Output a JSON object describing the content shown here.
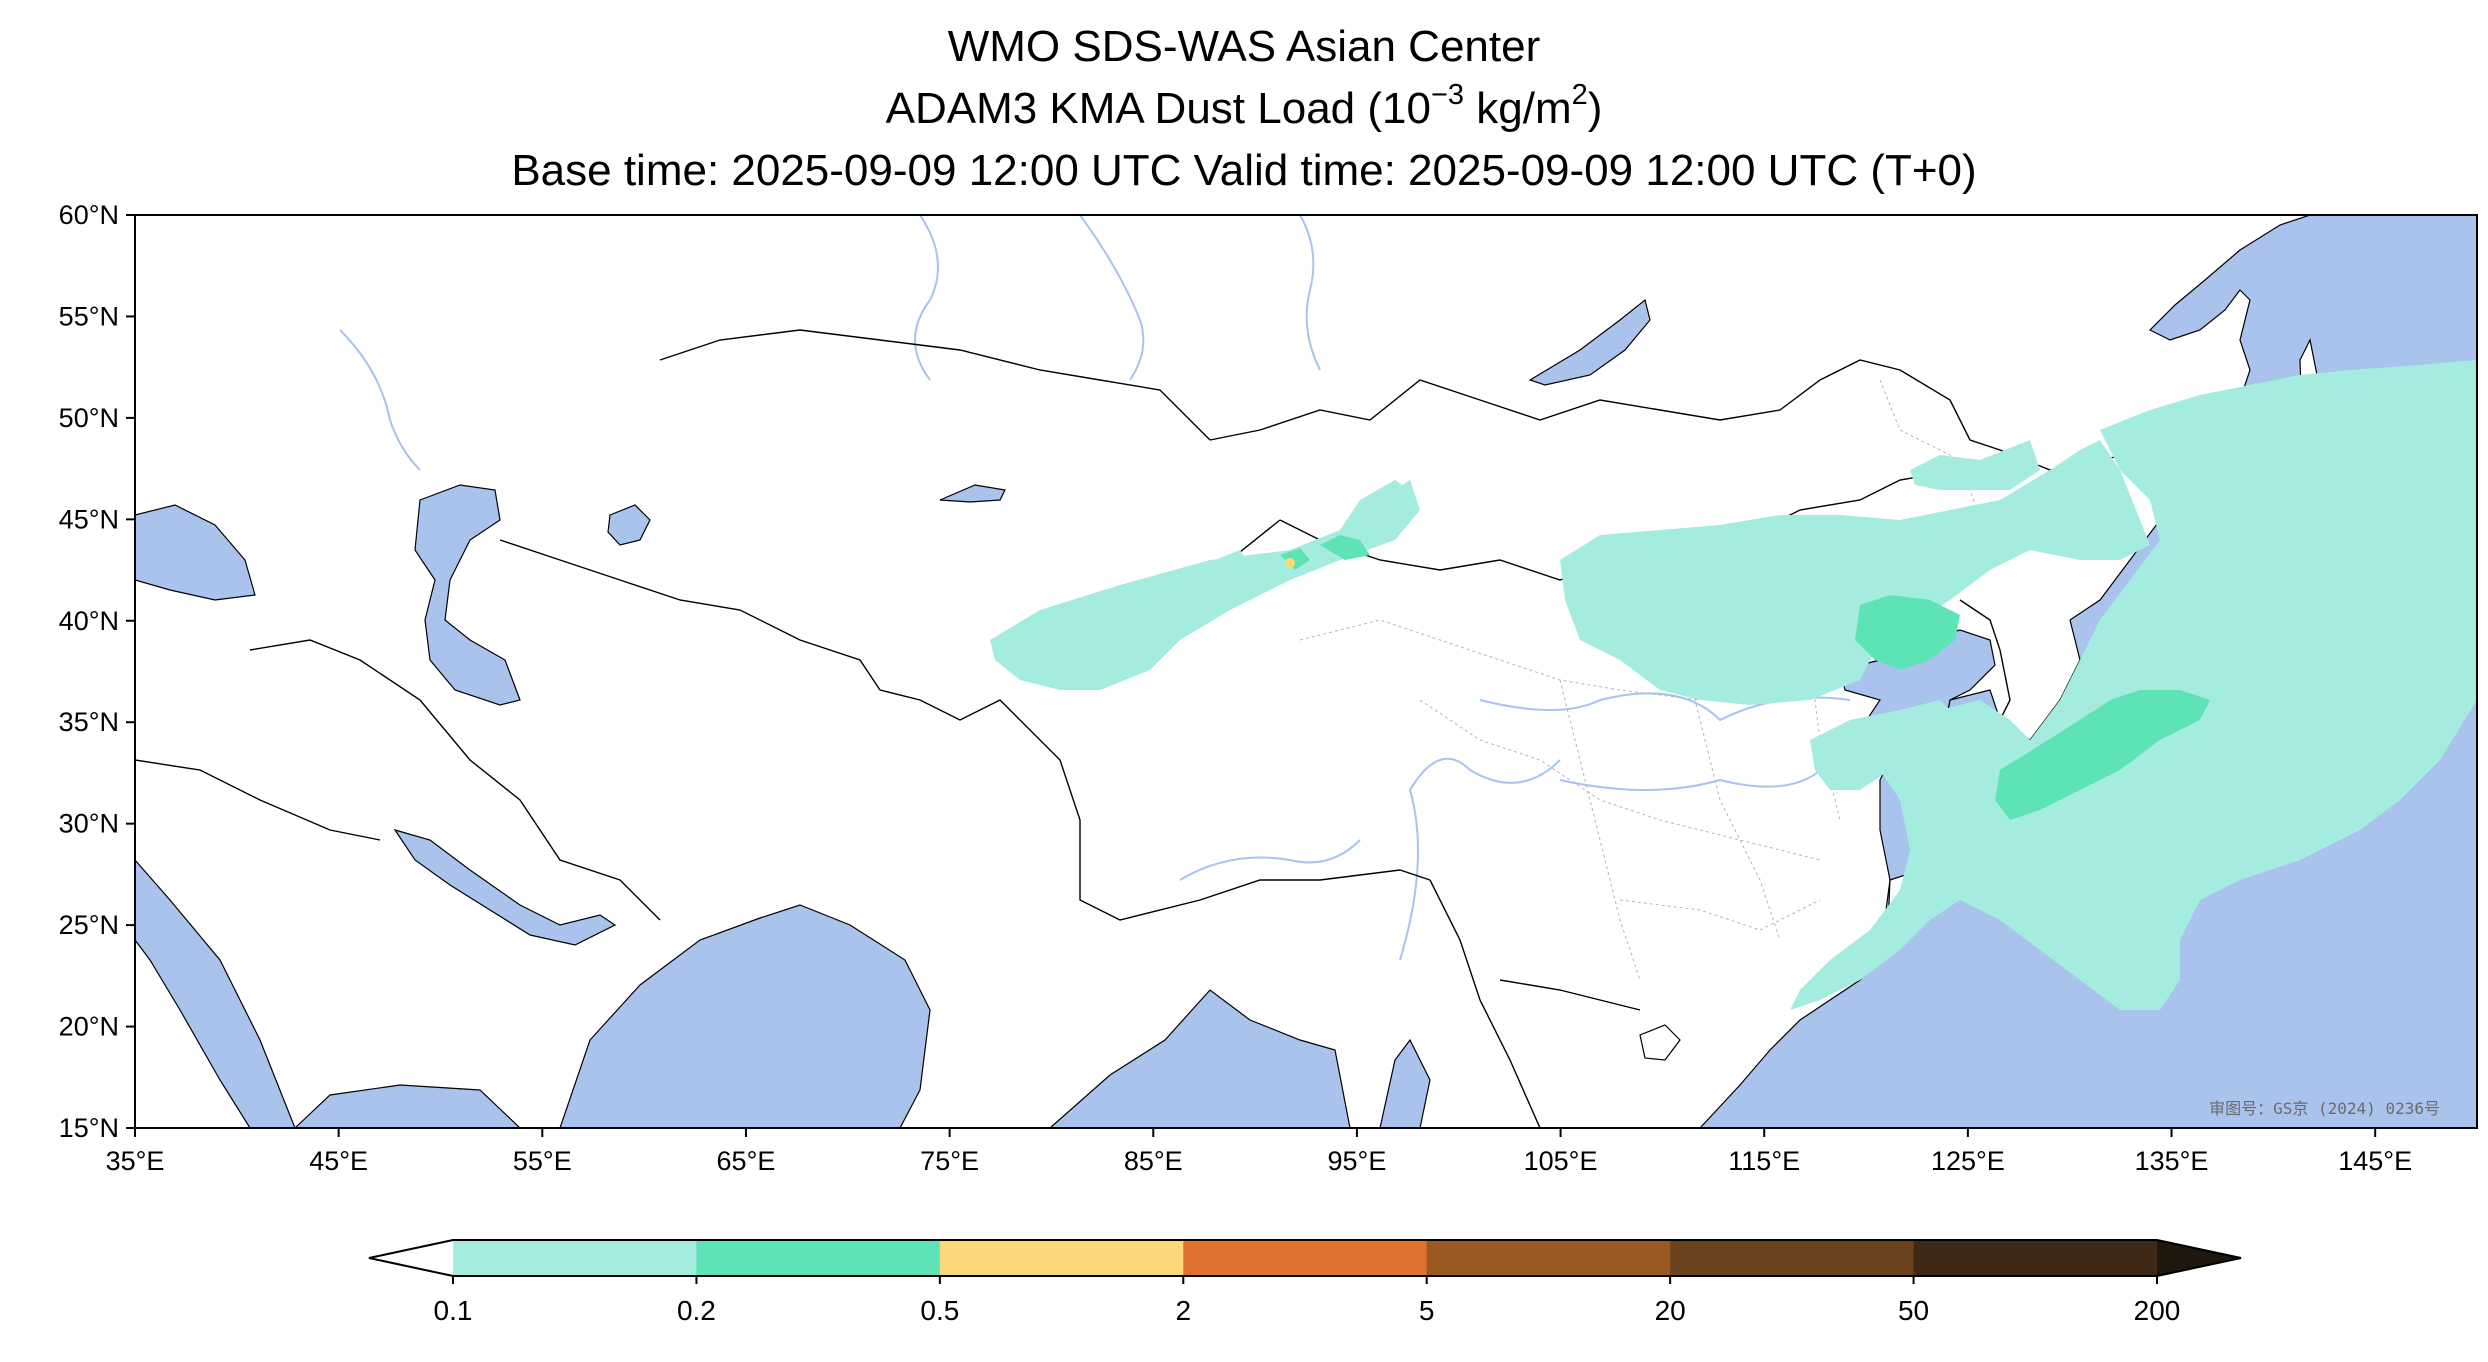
{
  "title": {
    "line1": "WMO SDS-WAS Asian Center",
    "line2_prefix": "ADAM3 KMA Dust Load (10",
    "line2_exp": "−3",
    "line2_mid": " kg/m",
    "line2_sq": "2",
    "line2_suffix": ")",
    "line3": "Base time: 2025-09-09 12:00 UTC Valid time: 2025-09-09 12:00 UTC (T+0)"
  },
  "map": {
    "lon_ticks": [
      "35°E",
      "45°E",
      "55°E",
      "65°E",
      "75°E",
      "85°E",
      "95°E",
      "105°E",
      "115°E",
      "125°E",
      "135°E",
      "145°E"
    ],
    "lat_ticks": [
      "60°N",
      "55°N",
      "50°N",
      "45°N",
      "40°N",
      "35°N",
      "30°N",
      "25°N",
      "20°N",
      "15°N"
    ],
    "lon_range": [
      35,
      150
    ],
    "lat_range": [
      15,
      60
    ],
    "approval_number": "审图号：GS京 (2024) 0236号",
    "colors": {
      "ocean": "#a9c3ec",
      "river": "#a9c3ec",
      "land": "#ffffff",
      "border": "#000000",
      "province": "#b0b0b0"
    }
  },
  "colorbar": {
    "labels": [
      "0.1",
      "0.2",
      "0.5",
      "2",
      "5",
      "20",
      "50",
      "200"
    ],
    "colors": [
      "#a4ece0",
      "#5ee3b7",
      "#fbd97a",
      "#df7131",
      "#9a5921",
      "#6b421c",
      "#3f2815"
    ],
    "under_color": "#ffffff",
    "over_color": "#1f160d"
  }
}
